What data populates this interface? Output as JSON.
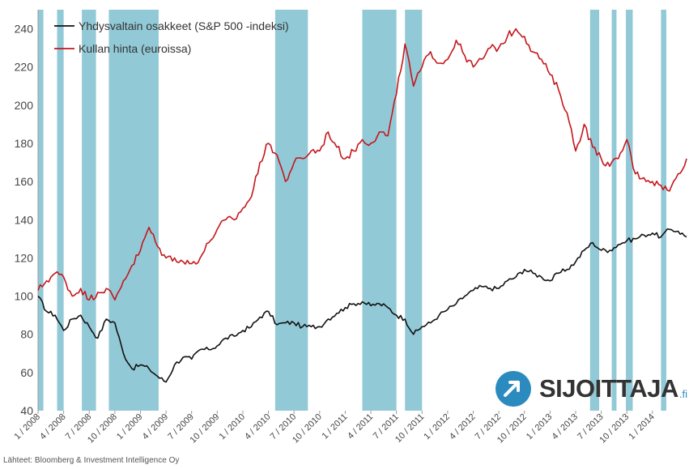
{
  "chart_data": {
    "type": "line",
    "title": "",
    "xlabel": "",
    "ylabel": "",
    "ylim": [
      40,
      250
    ],
    "yticks": [
      40,
      60,
      80,
      100,
      120,
      140,
      160,
      180,
      200,
      220,
      240
    ],
    "x_tick_labels": [
      "1 / 2008",
      "4 / 2008",
      "7 / 2008",
      "10 / 2008",
      "1 / 2009",
      "4 / 2009",
      "7 / 2009",
      "10 / 2009",
      "1 / 2010",
      "4 / 2010",
      "7 / 2010",
      "10 / 2010",
      "1 / 2011",
      "4 / 2011",
      "7 / 2011",
      "10 / 2011",
      "1 / 2012",
      "4 / 2012",
      "7 / 2012",
      "10 / 2012",
      "1 / 2013",
      "4 / 2013",
      "7 / 2013",
      "10 / 2013",
      "1 / 2014"
    ],
    "x_start": "2008-01",
    "x_end": "2014-05",
    "legend_position": "top-left",
    "series": [
      {
        "name": "Yhdysvaltain osakkeet (S&P 500 -indeksi)",
        "color": "#111111",
        "x": [
          "2008-01",
          "2008-02",
          "2008-03",
          "2008-04",
          "2008-05",
          "2008-06",
          "2008-07",
          "2008-08",
          "2008-09",
          "2008-10",
          "2008-11",
          "2008-12",
          "2009-01",
          "2009-02",
          "2009-03",
          "2009-04",
          "2009-05",
          "2009-06",
          "2009-07",
          "2009-08",
          "2009-09",
          "2009-10",
          "2009-11",
          "2009-12",
          "2010-01",
          "2010-02",
          "2010-03",
          "2010-04",
          "2010-05",
          "2010-06",
          "2010-07",
          "2010-08",
          "2010-09",
          "2010-10",
          "2010-11",
          "2010-12",
          "2011-01",
          "2011-02",
          "2011-03",
          "2011-04",
          "2011-05",
          "2011-06",
          "2011-07",
          "2011-08",
          "2011-09",
          "2011-10",
          "2011-11",
          "2011-12",
          "2012-01",
          "2012-02",
          "2012-03",
          "2012-04",
          "2012-05",
          "2012-06",
          "2012-07",
          "2012-08",
          "2012-09",
          "2012-10",
          "2012-11",
          "2012-12",
          "2013-01",
          "2013-02",
          "2013-03",
          "2013-04",
          "2013-05",
          "2013-06",
          "2013-07",
          "2013-08",
          "2013-09",
          "2013-10",
          "2013-11",
          "2013-12",
          "2014-01",
          "2014-02",
          "2014-03",
          "2014-04",
          "2014-05"
        ],
        "values": [
          100,
          92,
          90,
          82,
          88,
          90,
          84,
          78,
          88,
          86,
          70,
          62,
          64,
          62,
          58,
          55,
          64,
          68,
          67,
          72,
          72,
          74,
          78,
          79,
          82,
          84,
          89,
          92,
          85,
          86,
          86,
          84,
          84,
          84,
          88,
          91,
          94,
          96,
          97,
          95,
          96,
          94,
          90,
          88,
          80,
          84,
          86,
          90,
          93,
          96,
          100,
          103,
          105,
          104,
          104,
          108,
          110,
          114,
          112,
          110,
          108,
          112,
          114,
          118,
          124,
          128,
          124,
          124,
          127,
          129,
          130,
          132,
          133,
          131,
          135,
          134,
          131
        ]
      },
      {
        "name": "Kullan hinta (euroissa)",
        "color": "#c4161c",
        "x": [
          "2008-01",
          "2008-02",
          "2008-03",
          "2008-04",
          "2008-05",
          "2008-06",
          "2008-07",
          "2008-08",
          "2008-09",
          "2008-10",
          "2008-11",
          "2008-12",
          "2009-01",
          "2009-02",
          "2009-03",
          "2009-04",
          "2009-05",
          "2009-06",
          "2009-07",
          "2009-08",
          "2009-09",
          "2009-10",
          "2009-11",
          "2009-12",
          "2010-01",
          "2010-02",
          "2010-03",
          "2010-04",
          "2010-05",
          "2010-06",
          "2010-07",
          "2010-08",
          "2010-09",
          "2010-10",
          "2010-11",
          "2010-12",
          "2011-01",
          "2011-02",
          "2011-03",
          "2011-04",
          "2011-05",
          "2011-06",
          "2011-07",
          "2011-08",
          "2011-09",
          "2011-10",
          "2011-11",
          "2011-12",
          "2012-01",
          "2012-02",
          "2012-03",
          "2012-04",
          "2012-05",
          "2012-06",
          "2012-07",
          "2012-08",
          "2012-09",
          "2012-10",
          "2012-11",
          "2012-12",
          "2013-01",
          "2013-02",
          "2013-03",
          "2013-04",
          "2013-05",
          "2013-06",
          "2013-07",
          "2013-08",
          "2013-09",
          "2013-10",
          "2013-11",
          "2013-12",
          "2014-01",
          "2014-02",
          "2014-03",
          "2014-04",
          "2014-05"
        ],
        "values": [
          103,
          108,
          112,
          110,
          100,
          104,
          98,
          102,
          104,
          98,
          108,
          116,
          124,
          136,
          126,
          120,
          120,
          118,
          117,
          120,
          128,
          135,
          140,
          140,
          146,
          152,
          170,
          180,
          174,
          160,
          170,
          172,
          176,
          176,
          186,
          178,
          172,
          176,
          182,
          180,
          186,
          184,
          206,
          232,
          210,
          220,
          228,
          222,
          224,
          234,
          226,
          220,
          224,
          230,
          230,
          236,
          240,
          236,
          228,
          224,
          216,
          208,
          196,
          176,
          190,
          178,
          172,
          168,
          172,
          182,
          164,
          162,
          160,
          158,
          155,
          164,
          172
        ]
      }
    ],
    "shaded_intervals": [
      [
        "2008-01-01",
        "2008-01-20"
      ],
      [
        "2008-03-08",
        "2008-04-01"
      ],
      [
        "2008-06-05",
        "2008-07-25"
      ],
      [
        "2008-09-10",
        "2009-03-05"
      ],
      [
        "2010-04-25",
        "2010-08-20"
      ],
      [
        "2011-03-01",
        "2011-07-01"
      ],
      [
        "2011-08-01",
        "2011-10-01"
      ],
      [
        "2013-05-22",
        "2013-06-24"
      ],
      [
        "2013-08-08",
        "2013-08-25"
      ],
      [
        "2013-09-28",
        "2013-10-22"
      ],
      [
        "2014-02-01",
        "2014-02-20"
      ]
    ],
    "shade_color": "#7fbfcf"
  },
  "source_text": "Lähteet: Bloomberg & Investment Intelligence Oy",
  "logo": {
    "text": "SIJOITTAJA",
    "suffix": ".fi"
  }
}
